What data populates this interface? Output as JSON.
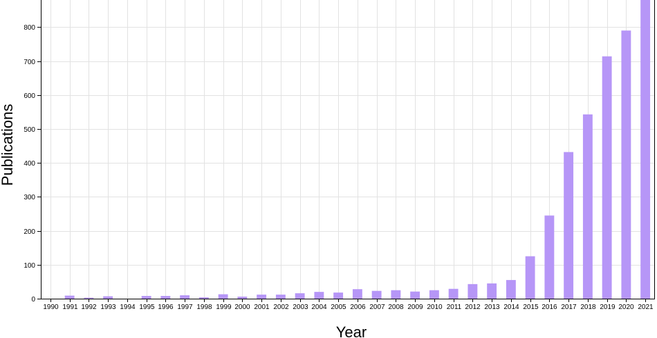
{
  "chart_data": {
    "type": "bar",
    "title": "",
    "xlabel": "Year",
    "ylabel": "Publications",
    "categories": [
      "1990",
      "1991",
      "1992",
      "1993",
      "1994",
      "1995",
      "1996",
      "1997",
      "1998",
      "1999",
      "2000",
      "2001",
      "2002",
      "2003",
      "2004",
      "2005",
      "2006",
      "2007",
      "2008",
      "2009",
      "2010",
      "2011",
      "2012",
      "2013",
      "2014",
      "2015",
      "2016",
      "2017",
      "2018",
      "2019",
      "2020",
      "2021"
    ],
    "values": [
      0,
      9,
      3,
      7,
      0,
      8,
      8,
      10,
      4,
      13,
      6,
      12,
      12,
      16,
      20,
      18,
      28,
      23,
      25,
      21,
      25,
      29,
      43,
      45,
      55,
      125,
      245,
      432,
      543,
      714,
      790,
      880
    ],
    "ylim": [
      0,
      880
    ],
    "yticks": [
      0,
      100,
      200,
      300,
      400,
      500,
      600,
      700,
      800
    ],
    "grid": true,
    "bar_color": "#b696f7",
    "legend": "none"
  }
}
